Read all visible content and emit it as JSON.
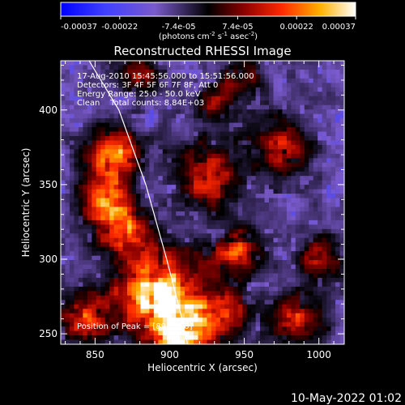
{
  "chart_data": {
    "type": "heatmap",
    "title": "Reconstructed RHESSI Image",
    "xlabel": "Heliocentric X (arcsec)",
    "ylabel": "Heliocentric Y (arcsec)",
    "xlim": [
      827,
      1017
    ],
    "ylim": [
      243,
      433
    ],
    "x_ticks": [
      850,
      900,
      950,
      1000
    ],
    "y_ticks": [
      250,
      300,
      350,
      400
    ],
    "colorbar": {
      "ticks": [
        "-0.00037",
        "-0.00022",
        "-7.4e-05",
        "7.4e-05",
        "0.00022",
        "0.00037"
      ],
      "range": [
        -0.00037,
        0.00037
      ],
      "unit_label": "(photons cm",
      "unit_exp1": "-2",
      "unit_mid": " s",
      "unit_exp2": "-1",
      "unit_mid2": " asec",
      "unit_exp3": "-2",
      "unit_end": ")"
    },
    "info_lines": [
      "17-Aug-2010 15:45:56.000 to 15:51:56.000",
      "Detectors: 3F 4F 5F 6F 7F 8F, Att 0",
      "Energy Range: 25.0 - 50.0 keV",
      "Clean    Total counts: 8.84E+03"
    ],
    "peak_label": "Position of Peak = [894,280]",
    "peak": [
      894,
      280
    ],
    "limb_curve": [
      [
        846,
        433
      ],
      [
        866,
        400
      ],
      [
        884,
        350
      ],
      [
        898,
        300
      ],
      [
        907,
        265
      ],
      [
        912,
        243
      ]
    ],
    "hot_spots": [
      {
        "x": 893,
        "y": 278,
        "intensity": 1.0,
        "spread": 20
      },
      {
        "x": 910,
        "y": 250,
        "intensity": 0.85,
        "spread": 14
      },
      {
        "x": 862,
        "y": 372,
        "intensity": 0.75,
        "spread": 12
      },
      {
        "x": 857,
        "y": 340,
        "intensity": 0.65,
        "spread": 13
      },
      {
        "x": 868,
        "y": 320,
        "intensity": 0.55,
        "spread": 12
      },
      {
        "x": 843,
        "y": 260,
        "intensity": 0.6,
        "spread": 12
      },
      {
        "x": 925,
        "y": 355,
        "intensity": 0.55,
        "spread": 16
      },
      {
        "x": 945,
        "y": 305,
        "intensity": 0.55,
        "spread": 12
      },
      {
        "x": 975,
        "y": 375,
        "intensity": 0.5,
        "spread": 14
      },
      {
        "x": 1000,
        "y": 300,
        "intensity": 0.5,
        "spread": 10
      },
      {
        "x": 985,
        "y": 260,
        "intensity": 0.55,
        "spread": 12
      },
      {
        "x": 940,
        "y": 265,
        "intensity": 0.45,
        "spread": 12
      },
      {
        "x": 930,
        "y": 405,
        "intensity": 0.35,
        "spread": 10
      },
      {
        "x": 880,
        "y": 425,
        "intensity": 0.4,
        "spread": 10
      },
      {
        "x": 950,
        "y": 420,
        "intensity": 0.35,
        "spread": 10
      }
    ]
  },
  "footer": {
    "date": "10-May-2022 01:02"
  }
}
